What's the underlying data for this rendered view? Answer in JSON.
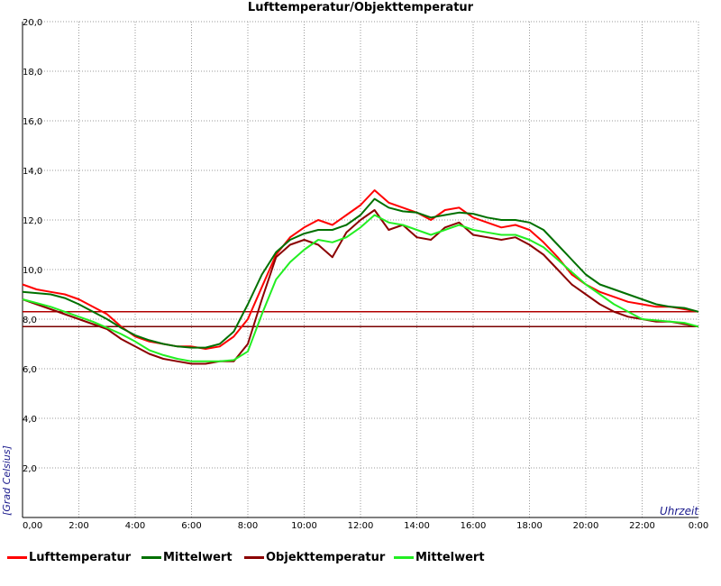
{
  "chart_data": {
    "type": "line",
    "title": "Lufttemperatur/Objekttemperatur",
    "xlabel": "Uhrzeit",
    "ylabel": "[Grad Celsius]",
    "xlim": [
      0,
      24
    ],
    "ylim": [
      0,
      20
    ],
    "grid": true,
    "legend_position": "bottom",
    "x_ticks": [
      "0,00",
      "2:00",
      "4:00",
      "6:00",
      "8:00",
      "10:00",
      "12:00",
      "14:00",
      "16:00",
      "18:00",
      "20:00",
      "22:00",
      "0:00"
    ],
    "y_ticks": [
      "2,0",
      "4,0",
      "6,0",
      "8,0",
      "10,0",
      "12,0",
      "14,0",
      "16,0",
      "18,0",
      "20,0"
    ],
    "reference_lines": [
      {
        "value": 8.3,
        "color": "#b00000"
      },
      {
        "value": 7.7,
        "color": "#7a0000"
      }
    ],
    "series": [
      {
        "name": "Lufttemperatur",
        "color": "#ff0000",
        "x": [
          0,
          0.5,
          1,
          1.5,
          2,
          2.5,
          3,
          3.5,
          4,
          4.5,
          5,
          5.5,
          6,
          6.5,
          7,
          7.5,
          8,
          8.5,
          9,
          9.5,
          10,
          10.5,
          11,
          11.5,
          12,
          12.5,
          13,
          13.5,
          14,
          14.5,
          15,
          15.5,
          16,
          16.5,
          17,
          17.5,
          18,
          18.5,
          19,
          19.5,
          20,
          20.5,
          21,
          21.5,
          22,
          22.5,
          23,
          23.5,
          24
        ],
        "y": [
          9.4,
          9.2,
          9.1,
          9.0,
          8.8,
          8.5,
          8.2,
          7.7,
          7.3,
          7.1,
          7.0,
          6.9,
          6.9,
          6.8,
          6.9,
          7.3,
          8.0,
          9.3,
          10.6,
          11.3,
          11.7,
          12.0,
          11.8,
          12.2,
          12.6,
          13.2,
          12.7,
          12.5,
          12.3,
          12.0,
          12.4,
          12.5,
          12.1,
          11.9,
          11.7,
          11.8,
          11.6,
          11.1,
          10.5,
          9.8,
          9.4,
          9.1,
          8.9,
          8.7,
          8.6,
          8.5,
          8.5,
          8.4,
          8.3
        ]
      },
      {
        "name": "Mittelwert",
        "color": "#007000",
        "x": [
          0,
          0.5,
          1,
          1.5,
          2,
          2.5,
          3,
          3.5,
          4,
          4.5,
          5,
          5.5,
          6,
          6.5,
          7,
          7.5,
          8,
          8.5,
          9,
          9.5,
          10,
          10.5,
          11,
          11.5,
          12,
          12.5,
          13,
          13.5,
          14,
          14.5,
          15,
          15.5,
          16,
          16.5,
          17,
          17.5,
          18,
          18.5,
          19,
          19.5,
          20,
          20.5,
          21,
          21.5,
          22,
          22.5,
          23,
          23.5,
          24
        ],
        "y": [
          9.1,
          9.05,
          9.0,
          8.85,
          8.6,
          8.3,
          8.0,
          7.65,
          7.35,
          7.15,
          7.0,
          6.9,
          6.85,
          6.85,
          7.0,
          7.5,
          8.6,
          9.8,
          10.7,
          11.2,
          11.45,
          11.6,
          11.6,
          11.8,
          12.2,
          12.85,
          12.5,
          12.35,
          12.3,
          12.1,
          12.2,
          12.3,
          12.25,
          12.1,
          12.0,
          12.0,
          11.9,
          11.6,
          11.0,
          10.4,
          9.8,
          9.4,
          9.2,
          9.0,
          8.8,
          8.6,
          8.5,
          8.45,
          8.3
        ]
      },
      {
        "name": "Objekttemperatur",
        "color": "#8b0000",
        "x": [
          0,
          0.5,
          1,
          1.5,
          2,
          2.5,
          3,
          3.5,
          4,
          4.5,
          5,
          5.5,
          6,
          6.5,
          7,
          7.5,
          8,
          8.5,
          9,
          9.5,
          10,
          10.5,
          11,
          11.5,
          12,
          12.5,
          13,
          13.5,
          14,
          14.5,
          15,
          15.5,
          16,
          16.5,
          17,
          17.5,
          18,
          18.5,
          19,
          19.5,
          20,
          20.5,
          21,
          21.5,
          22,
          22.5,
          23,
          23.5,
          24
        ],
        "y": [
          8.8,
          8.6,
          8.4,
          8.2,
          8.0,
          7.8,
          7.6,
          7.2,
          6.9,
          6.6,
          6.4,
          6.3,
          6.2,
          6.2,
          6.3,
          6.3,
          7.0,
          8.8,
          10.5,
          11.0,
          11.2,
          11.0,
          10.5,
          11.5,
          12.0,
          12.4,
          11.6,
          11.8,
          11.3,
          11.2,
          11.7,
          11.9,
          11.4,
          11.3,
          11.2,
          11.3,
          11.0,
          10.6,
          10.0,
          9.4,
          9.0,
          8.6,
          8.3,
          8.1,
          8.0,
          7.9,
          7.9,
          7.8,
          7.7
        ]
      },
      {
        "name": "Mittelwert",
        "color": "#22ee22",
        "x": [
          0,
          0.5,
          1,
          1.5,
          2,
          2.5,
          3,
          3.5,
          4,
          4.5,
          5,
          5.5,
          6,
          6.5,
          7,
          7.5,
          8,
          8.5,
          9,
          9.5,
          10,
          10.5,
          11,
          11.5,
          12,
          12.5,
          13,
          13.5,
          14,
          14.5,
          15,
          15.5,
          16,
          16.5,
          17,
          17.5,
          18,
          18.5,
          19,
          19.5,
          20,
          20.5,
          21,
          21.5,
          22,
          22.5,
          23,
          23.5,
          24
        ],
        "y": [
          8.8,
          8.65,
          8.5,
          8.3,
          8.1,
          7.9,
          7.65,
          7.4,
          7.1,
          6.75,
          6.55,
          6.4,
          6.3,
          6.3,
          6.3,
          6.35,
          6.7,
          8.2,
          9.6,
          10.3,
          10.8,
          11.2,
          11.1,
          11.3,
          11.7,
          12.2,
          11.9,
          11.8,
          11.6,
          11.4,
          11.6,
          11.8,
          11.6,
          11.5,
          11.4,
          11.4,
          11.2,
          10.9,
          10.4,
          9.9,
          9.4,
          9.0,
          8.6,
          8.3,
          8.0,
          7.95,
          7.9,
          7.85,
          7.7
        ]
      }
    ]
  }
}
